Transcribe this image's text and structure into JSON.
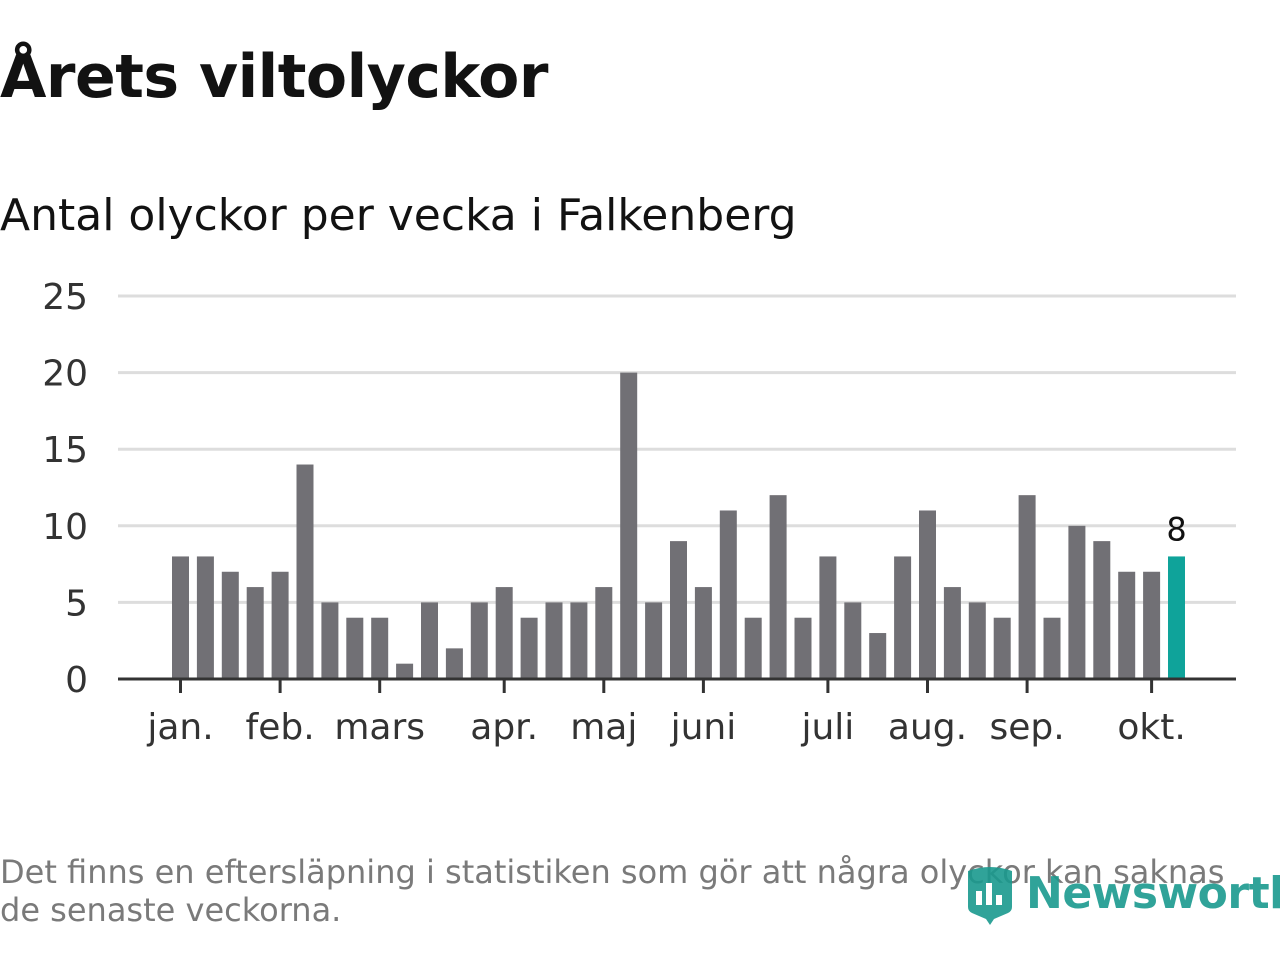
{
  "title": "Årets viltolyckor",
  "subtitle": "Antal olyckor per vecka i Falkenberg",
  "footnote": "Det finns en eftersläpning i statistiken som gör att några olyckor kan saknas de senaste veckorna.",
  "logo": {
    "text": "Newsworthy",
    "icon": "newsworthy-logo-icon"
  },
  "colors": {
    "bar": "#717075",
    "highlight": "#0fa39a",
    "grid": "#dddddd",
    "axis": "#333333",
    "text": "#333333"
  },
  "chart_data": {
    "type": "bar",
    "title": "Antal olyckor per vecka i Falkenberg",
    "xlabel": "",
    "ylabel": "",
    "ylim": [
      0,
      25
    ],
    "yticks": [
      0,
      5,
      10,
      15,
      20,
      25
    ],
    "grid": true,
    "weeks": [
      1,
      2,
      3,
      4,
      5,
      6,
      7,
      8,
      9,
      10,
      11,
      12,
      13,
      14,
      15,
      16,
      17,
      18,
      19,
      20,
      21,
      22,
      23,
      24,
      25,
      26,
      27,
      28,
      29,
      30,
      31,
      32,
      33,
      34,
      35,
      36,
      37,
      38,
      39,
      40,
      41
    ],
    "values": [
      8,
      8,
      7,
      6,
      7,
      14,
      5,
      4,
      4,
      1,
      5,
      2,
      5,
      6,
      4,
      5,
      5,
      6,
      20,
      5,
      9,
      6,
      11,
      4,
      12,
      4,
      8,
      5,
      3,
      8,
      11,
      6,
      5,
      4,
      12,
      4,
      10,
      9,
      7,
      7,
      8
    ],
    "highlight_index": 40,
    "highlight_label": "8",
    "month_labels": [
      {
        "label": "jan.",
        "week": 1
      },
      {
        "label": "feb.",
        "week": 5
      },
      {
        "label": "mars",
        "week": 9
      },
      {
        "label": "apr.",
        "week": 14
      },
      {
        "label": "maj",
        "week": 18
      },
      {
        "label": "juni",
        "week": 22
      },
      {
        "label": "juli",
        "week": 27
      },
      {
        "label": "aug.",
        "week": 31
      },
      {
        "label": "sep.",
        "week": 35
      },
      {
        "label": "okt.",
        "week": 40
      }
    ]
  }
}
